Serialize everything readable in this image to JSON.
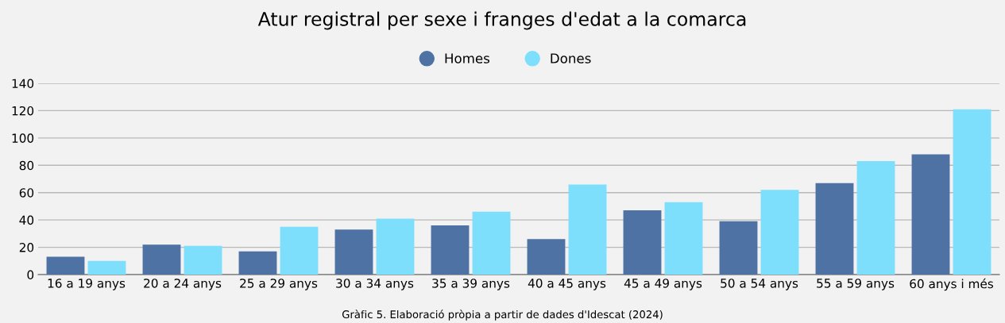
{
  "chart_data": {
    "type": "bar",
    "title": "Atur registral per sexe i franges d'edat a la comarca",
    "categories": [
      "16 a 19 anys",
      "20 a 24 anys",
      "25 a 29 anys",
      "30 a 34 anys",
      "35 a 39 anys",
      "40 a 45 anys",
      "45 a 49 anys",
      "50 a 54 anys",
      "55 a 59 anys",
      "60 anys i més"
    ],
    "series": [
      {
        "name": "Homes",
        "color": "#4e72a3",
        "values": [
          13,
          22,
          17,
          33,
          36,
          26,
          47,
          39,
          67,
          88
        ]
      },
      {
        "name": "Dones",
        "color": "#7ddffc",
        "values": [
          10,
          21,
          35,
          41,
          46,
          66,
          53,
          62,
          83,
          121
        ]
      }
    ],
    "ylim": [
      0,
      140
    ],
    "yticks": [
      0,
      20,
      40,
      60,
      80,
      100,
      120,
      140
    ],
    "grid": "y",
    "legend": "top",
    "annotations": [
      "Gràfic 5. Elaboració pròpia a partir de dades d'Idescat (2024)"
    ]
  }
}
